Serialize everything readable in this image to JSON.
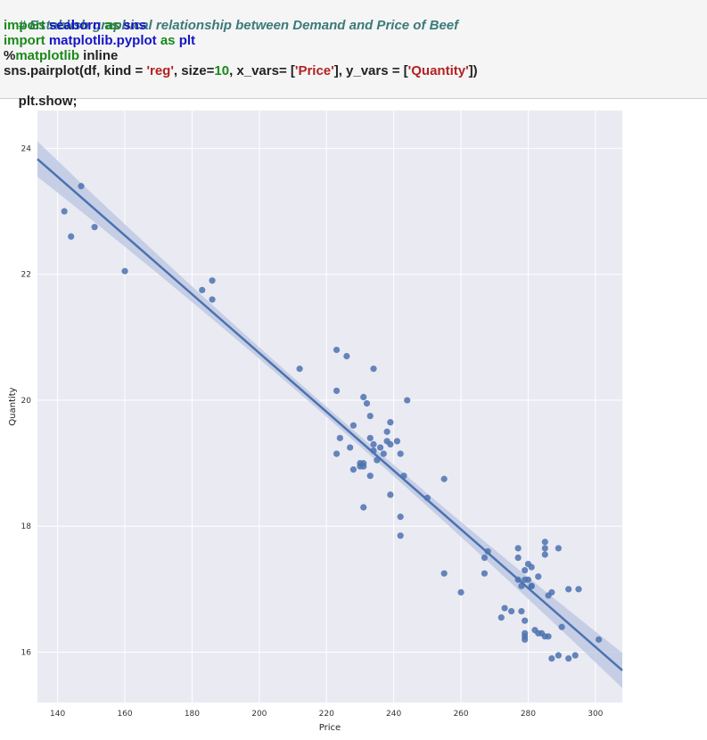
{
  "code": {
    "line1": "# Establish graphical relationship between Demand and Price of Beef",
    "line2": {
      "kw1": "import",
      "mod": "seaborn",
      "kw2": "as",
      "alias": "sns"
    },
    "line3": {
      "kw1": "import",
      "mod": "matplotlib.pyplot",
      "kw2": "as",
      "alias": "plt"
    },
    "line4": {
      "pct": "%",
      "magic": "matplotlib",
      "arg": " inline"
    },
    "line5": {
      "p1": "sns.pairplot(df, kind = ",
      "s1": "'reg'",
      "p2": ", size=",
      "n1": "10",
      "p3": ", x_vars= [",
      "s2": "'Price'",
      "p4": "], y_vars = [",
      "s3": "'Quantity'",
      "p5": "])"
    },
    "line6": "plt.show;"
  },
  "colors": {
    "plot_bg": "#eaeaf2",
    "grid": "#ffffff",
    "point": "#4c72b0",
    "line": "#4c72b0",
    "band": "#b8c4e0"
  },
  "chart_data": {
    "type": "scatter",
    "xlabel": "Price",
    "ylabel": "Quantity",
    "xlim": [
      134,
      308
    ],
    "ylim": [
      15.2,
      24.6
    ],
    "xticks": [
      140,
      160,
      180,
      200,
      220,
      240,
      260,
      280,
      300
    ],
    "yticks": [
      16,
      18,
      20,
      22,
      24
    ],
    "grid": true,
    "regression": {
      "x": [
        134,
        308
      ],
      "y": [
        23.83,
        15.71
      ],
      "ci_halfwidth_ends": 0.28,
      "ci_halfwidth_center": 0.08
    },
    "points": [
      [
        142,
        23.0
      ],
      [
        144,
        22.6
      ],
      [
        147,
        23.4
      ],
      [
        151,
        22.75
      ],
      [
        160,
        22.05
      ],
      [
        183,
        21.75
      ],
      [
        186,
        21.9
      ],
      [
        186,
        21.6
      ],
      [
        212,
        20.5
      ],
      [
        223,
        20.8
      ],
      [
        223,
        20.15
      ],
      [
        224,
        19.4
      ],
      [
        226,
        20.7
      ],
      [
        223,
        19.15
      ],
      [
        227,
        19.25
      ],
      [
        228,
        18.9
      ],
      [
        228,
        19.6
      ],
      [
        230,
        19.0
      ],
      [
        230,
        18.95
      ],
      [
        231,
        20.05
      ],
      [
        231,
        18.95
      ],
      [
        231,
        19.0
      ],
      [
        231,
        18.3
      ],
      [
        232,
        19.95
      ],
      [
        233,
        19.75
      ],
      [
        233,
        19.4
      ],
      [
        233,
        18.8
      ],
      [
        234,
        19.3
      ],
      [
        234,
        19.2
      ],
      [
        234,
        20.5
      ],
      [
        235,
        19.05
      ],
      [
        236,
        19.25
      ],
      [
        237,
        19.15
      ],
      [
        238,
        19.5
      ],
      [
        238,
        19.35
      ],
      [
        239,
        19.3
      ],
      [
        239,
        19.65
      ],
      [
        239,
        18.5
      ],
      [
        241,
        19.35
      ],
      [
        242,
        19.15
      ],
      [
        242,
        18.15
      ],
      [
        242,
        17.85
      ],
      [
        243,
        18.8
      ],
      [
        244,
        20.0
      ],
      [
        250,
        18.45
      ],
      [
        255,
        18.75
      ],
      [
        255,
        17.25
      ],
      [
        260,
        16.95
      ],
      [
        267,
        17.5
      ],
      [
        267,
        17.25
      ],
      [
        268,
        17.6
      ],
      [
        272,
        16.55
      ],
      [
        273,
        16.7
      ],
      [
        275,
        16.65
      ],
      [
        277,
        17.65
      ],
      [
        277,
        17.5
      ],
      [
        277,
        17.15
      ],
      [
        278,
        16.65
      ],
      [
        278,
        17.05
      ],
      [
        279,
        17.3
      ],
      [
        279,
        17.15
      ],
      [
        279,
        16.5
      ],
      [
        279,
        16.3
      ],
      [
        279,
        16.25
      ],
      [
        279,
        16.2
      ],
      [
        280,
        17.4
      ],
      [
        280,
        17.15
      ],
      [
        281,
        17.35
      ],
      [
        281,
        17.05
      ],
      [
        281,
        17.05
      ],
      [
        282,
        16.35
      ],
      [
        283,
        16.3
      ],
      [
        283,
        17.2
      ],
      [
        284,
        16.3
      ],
      [
        285,
        16.25
      ],
      [
        285,
        17.75
      ],
      [
        285,
        17.65
      ],
      [
        285,
        17.55
      ],
      [
        286,
        16.9
      ],
      [
        286,
        16.25
      ],
      [
        287,
        16.95
      ],
      [
        287,
        15.9
      ],
      [
        289,
        17.65
      ],
      [
        290,
        16.4
      ],
      [
        289,
        15.95
      ],
      [
        292,
        17.0
      ],
      [
        292,
        15.9
      ],
      [
        294,
        15.95
      ],
      [
        295,
        17.0
      ],
      [
        301,
        16.2
      ]
    ]
  }
}
